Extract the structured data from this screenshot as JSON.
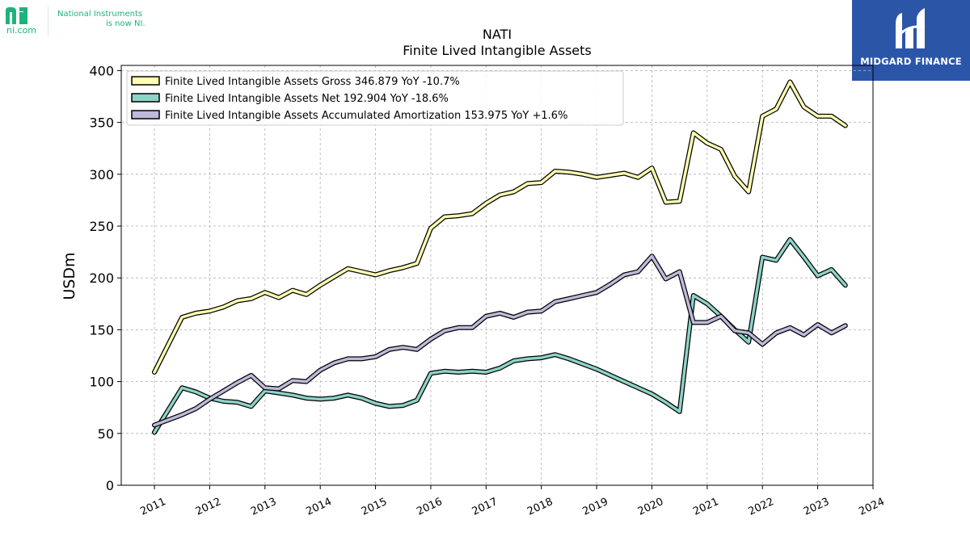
{
  "logo": {
    "brand": "ni",
    "site": "ni.com",
    "tagline_line1": "National Instruments",
    "tagline_line2": "is now NI."
  },
  "watermark": {
    "name": "MIDGARD FINANCE",
    "color": "#2b56a8"
  },
  "chart_data": {
    "type": "line",
    "title": "NATI",
    "subtitle": "Finite Lived Intangible Assets",
    "xlabel": "",
    "ylabel": "USDm",
    "xlim": [
      2010.4,
      2024.0
    ],
    "ylim": [
      0,
      405
    ],
    "yticks": [
      0,
      50,
      100,
      150,
      200,
      250,
      300,
      350,
      400
    ],
    "xticks": [
      "2011",
      "2012",
      "2013",
      "2014",
      "2015",
      "2016",
      "2017",
      "2018",
      "2019",
      "2020",
      "2021",
      "2022",
      "2023",
      "2024"
    ],
    "grid": true,
    "legend_position": "top-left",
    "series": [
      {
        "name": "Finite Lived Intangible Assets Gross",
        "legend_label": "Finite Lived Intangible Assets Gross  346.879 YoY -10.7%",
        "color": "#ffffb3",
        "x": [
          2011.0,
          2011.5,
          2011.75,
          2012.0,
          2012.25,
          2012.5,
          2012.75,
          2013.0,
          2013.25,
          2013.5,
          2013.75,
          2014.0,
          2014.25,
          2014.5,
          2014.75,
          2015.0,
          2015.25,
          2015.5,
          2015.75,
          2016.0,
          2016.25,
          2016.5,
          2016.75,
          2017.0,
          2017.25,
          2017.5,
          2017.75,
          2018.0,
          2018.25,
          2018.5,
          2018.75,
          2019.0,
          2019.25,
          2019.5,
          2019.75,
          2020.0,
          2020.25,
          2020.5,
          2020.75,
          2021.0,
          2021.25,
          2021.5,
          2021.75,
          2022.0,
          2022.25,
          2022.5,
          2022.75,
          2023.0,
          2023.25,
          2023.5
        ],
        "values": [
          109,
          162,
          166,
          168,
          172,
          178,
          180,
          186,
          181,
          188,
          184,
          193,
          201,
          209,
          206,
          203,
          207,
          210,
          214,
          248,
          259,
          260,
          262,
          272,
          280,
          283,
          291,
          292,
          303,
          302,
          300,
          297,
          299,
          301,
          297,
          306,
          273,
          274,
          340,
          330,
          324,
          298,
          283,
          356,
          363,
          389,
          365,
          356,
          356,
          346.879
        ]
      },
      {
        "name": "Finite Lived Intangible Assets Net",
        "legend_label": "Finite Lived Intangible Assets Net  192.904 YoY -18.6%",
        "color": "#8dd3c7",
        "x": [
          2011.0,
          2011.5,
          2011.75,
          2012.0,
          2012.25,
          2012.5,
          2012.75,
          2013.0,
          2013.25,
          2013.5,
          2013.75,
          2014.0,
          2014.25,
          2014.5,
          2014.75,
          2015.0,
          2015.25,
          2015.5,
          2015.75,
          2016.0,
          2016.25,
          2016.5,
          2016.75,
          2017.0,
          2017.25,
          2017.5,
          2017.75,
          2018.0,
          2018.25,
          2018.5,
          2018.75,
          2019.0,
          2019.25,
          2019.5,
          2019.75,
          2020.0,
          2020.25,
          2020.5,
          2020.75,
          2021.0,
          2021.25,
          2021.5,
          2021.75,
          2022.0,
          2022.25,
          2022.5,
          2022.75,
          2023.0,
          2023.25,
          2023.5
        ],
        "values": [
          51,
          94,
          90,
          84,
          81,
          80,
          76,
          91,
          89,
          87,
          84,
          83,
          84,
          87,
          84,
          79,
          76,
          77,
          82,
          108,
          110,
          109,
          110,
          109,
          113,
          120,
          122,
          123,
          126,
          122,
          117,
          112,
          106,
          100,
          94,
          88,
          80,
          71,
          183,
          175,
          163,
          150,
          138,
          220,
          217,
          237,
          220,
          202,
          208,
          192.904
        ]
      },
      {
        "name": "Finite Lived Intangible Assets Accumulated Amortization",
        "legend_label": "Finite Lived Intangible Assets Accumulated Amortization  153.975 YoY +1.6%",
        "color": "#bebada",
        "x": [
          2011.0,
          2011.5,
          2011.75,
          2012.0,
          2012.25,
          2012.5,
          2012.75,
          2013.0,
          2013.25,
          2013.5,
          2013.75,
          2014.0,
          2014.25,
          2014.5,
          2014.75,
          2015.0,
          2015.25,
          2015.5,
          2015.75,
          2016.0,
          2016.25,
          2016.5,
          2016.75,
          2017.0,
          2017.25,
          2017.5,
          2017.75,
          2018.0,
          2018.25,
          2018.5,
          2018.75,
          2019.0,
          2019.25,
          2019.5,
          2019.75,
          2020.0,
          2020.25,
          2020.5,
          2020.75,
          2021.0,
          2021.25,
          2021.5,
          2021.75,
          2022.0,
          2022.25,
          2022.5,
          2022.75,
          2023.0,
          2023.25,
          2023.5
        ],
        "values": [
          58,
          68,
          74,
          83,
          91,
          99,
          106,
          94,
          93,
          101,
          100,
          111,
          118,
          122,
          122,
          124,
          131,
          133,
          131,
          141,
          149,
          152,
          152,
          163,
          166,
          162,
          167,
          168,
          177,
          180,
          183,
          186,
          194,
          203,
          206,
          221,
          199,
          206,
          157,
          157,
          163,
          149,
          147,
          136,
          147,
          152,
          145,
          155,
          147,
          153.975
        ]
      }
    ]
  }
}
